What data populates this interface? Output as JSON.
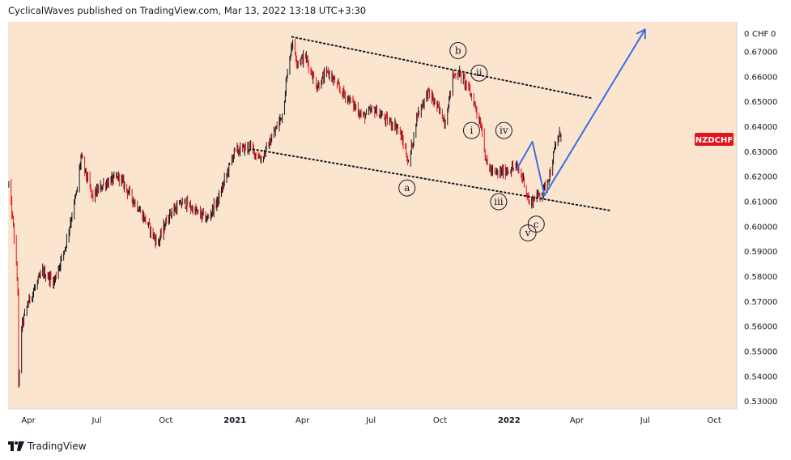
{
  "header": {
    "text": "CyclicalWaves published on TradingView.com, Mar 13, 2022 13:18 UTC+3:30"
  },
  "footer": {
    "brand": "TradingView"
  },
  "colors": {
    "background": "#fbe5cf",
    "up_candle": "#131722",
    "down_candle": "#e3121b",
    "projection": "#3b6fe0",
    "symbol_tag_bg": "#e3121b"
  },
  "chart_data": {
    "type": "candlestick",
    "symbol": "NZDCHF",
    "ylabel_unit": "CHF",
    "y_unit_scale": "0",
    "ylim": [
      0.527,
      0.682
    ],
    "yticks": [
      "0.67000",
      "0.66000",
      "0.65000",
      "0.64000",
      "0.63000",
      "0.62000",
      "0.61000",
      "0.60000",
      "0.59000",
      "0.58000",
      "0.57000",
      "0.56000",
      "0.55000",
      "0.54000",
      "0.53000"
    ],
    "ytick_values": [
      0.67,
      0.66,
      0.65,
      0.64,
      0.63,
      0.62,
      0.61,
      0.6,
      0.59,
      0.58,
      0.57,
      0.56,
      0.55,
      0.54,
      0.53
    ],
    "xlim": [
      "2020-03-05",
      "2022-10-31"
    ],
    "xticks": [
      {
        "label": "Apr",
        "date": "2020-04-01"
      },
      {
        "label": "Jul",
        "date": "2020-07-01"
      },
      {
        "label": "Oct",
        "date": "2020-10-01"
      },
      {
        "label": "2021",
        "date": "2021-01-01",
        "bold": true
      },
      {
        "label": "Apr",
        "date": "2021-04-01"
      },
      {
        "label": "Jul",
        "date": "2021-07-01"
      },
      {
        "label": "Oct",
        "date": "2021-10-01"
      },
      {
        "label": "2022",
        "date": "2022-01-01",
        "bold": true
      },
      {
        "label": "Apr",
        "date": "2022-04-01"
      },
      {
        "label": "Jul",
        "date": "2022-07-01"
      },
      {
        "label": "Oct",
        "date": "2022-10-01"
      }
    ],
    "price_path": [
      [
        "2020-03-06",
        0.617
      ],
      [
        "2020-03-12",
        0.6
      ],
      [
        "2020-03-18",
        0.575
      ],
      [
        "2020-03-19",
        0.535
      ],
      [
        "2020-03-23",
        0.56
      ],
      [
        "2020-04-01",
        0.57
      ],
      [
        "2020-04-20",
        0.582
      ],
      [
        "2020-05-05",
        0.578
      ],
      [
        "2020-05-20",
        0.592
      ],
      [
        "2020-06-05",
        0.615
      ],
      [
        "2020-06-10",
        0.628
      ],
      [
        "2020-06-25",
        0.612
      ],
      [
        "2020-07-10",
        0.617
      ],
      [
        "2020-07-31",
        0.62
      ],
      [
        "2020-08-20",
        0.61
      ],
      [
        "2020-09-05",
        0.602
      ],
      [
        "2020-09-20",
        0.593
      ],
      [
        "2020-10-05",
        0.605
      ],
      [
        "2020-10-25",
        0.61
      ],
      [
        "2020-11-10",
        0.606
      ],
      [
        "2020-11-25",
        0.603
      ],
      [
        "2020-12-10",
        0.611
      ],
      [
        "2020-12-31",
        0.63
      ],
      [
        "2021-01-20",
        0.632
      ],
      [
        "2021-02-05",
        0.627
      ],
      [
        "2021-02-20",
        0.636
      ],
      [
        "2021-03-05",
        0.645
      ],
      [
        "2021-03-12",
        0.662
      ],
      [
        "2021-03-18",
        0.674
      ],
      [
        "2021-03-25",
        0.666
      ],
      [
        "2021-04-05",
        0.668
      ],
      [
        "2021-04-20",
        0.656
      ],
      [
        "2021-05-05",
        0.662
      ],
      [
        "2021-05-20",
        0.655
      ],
      [
        "2021-06-05",
        0.65
      ],
      [
        "2021-06-20",
        0.644
      ],
      [
        "2021-07-05",
        0.647
      ],
      [
        "2021-07-20",
        0.643
      ],
      [
        "2021-08-05",
        0.64
      ],
      [
        "2021-08-15",
        0.632
      ],
      [
        "2021-08-20",
        0.625
      ],
      [
        "2021-09-01",
        0.645
      ],
      [
        "2021-09-15",
        0.654
      ],
      [
        "2021-10-01",
        0.646
      ],
      [
        "2021-10-08",
        0.642
      ],
      [
        "2021-10-18",
        0.66
      ],
      [
        "2021-10-25",
        0.662
      ],
      [
        "2021-11-05",
        0.657
      ],
      [
        "2021-11-15",
        0.65
      ],
      [
        "2021-11-25",
        0.64
      ],
      [
        "2021-12-02",
        0.625
      ],
      [
        "2021-12-12",
        0.621
      ],
      [
        "2021-12-25",
        0.622
      ],
      [
        "2022-01-10",
        0.624
      ],
      [
        "2022-01-20",
        0.619
      ],
      [
        "2022-01-28",
        0.609
      ],
      [
        "2022-02-05",
        0.612
      ],
      [
        "2022-02-15",
        0.614
      ],
      [
        "2022-02-25",
        0.622
      ],
      [
        "2022-03-04",
        0.633
      ],
      [
        "2022-03-11",
        0.638
      ]
    ],
    "annotations": {
      "upper_trendline": [
        [
          "2021-03-18",
          0.676
        ],
        [
          "2022-04-20",
          0.6515
        ]
      ],
      "lower_trendline": [
        [
          "2021-01-25",
          0.631
        ],
        [
          "2022-05-15",
          0.6065
        ]
      ],
      "projection_path": [
        [
          "2022-01-10",
          0.6225
        ],
        [
          "2022-02-01",
          0.634
        ],
        [
          "2022-02-17",
          0.6125
        ],
        [
          "2022-07-01",
          0.679
        ]
      ],
      "wave_labels": [
        {
          "text": "a",
          "date": "2021-08-18",
          "price": 0.6155
        },
        {
          "text": "b",
          "date": "2021-10-25",
          "price": 0.6705
        },
        {
          "text": "ii",
          "date": "2021-11-22",
          "price": 0.6615
        },
        {
          "text": "i",
          "date": "2021-11-12",
          "price": 0.6385
        },
        {
          "text": "iv",
          "date": "2021-12-25",
          "price": 0.6385
        },
        {
          "text": "iii",
          "date": "2021-12-18",
          "price": 0.61
        },
        {
          "text": "v",
          "date": "2022-01-26",
          "price": 0.5975
        },
        {
          "text": "c",
          "date": "2022-02-06",
          "price": 0.601
        }
      ]
    },
    "last_price_tag": {
      "text": "NZDCHF",
      "price": 0.635
    },
    "grid": false
  }
}
